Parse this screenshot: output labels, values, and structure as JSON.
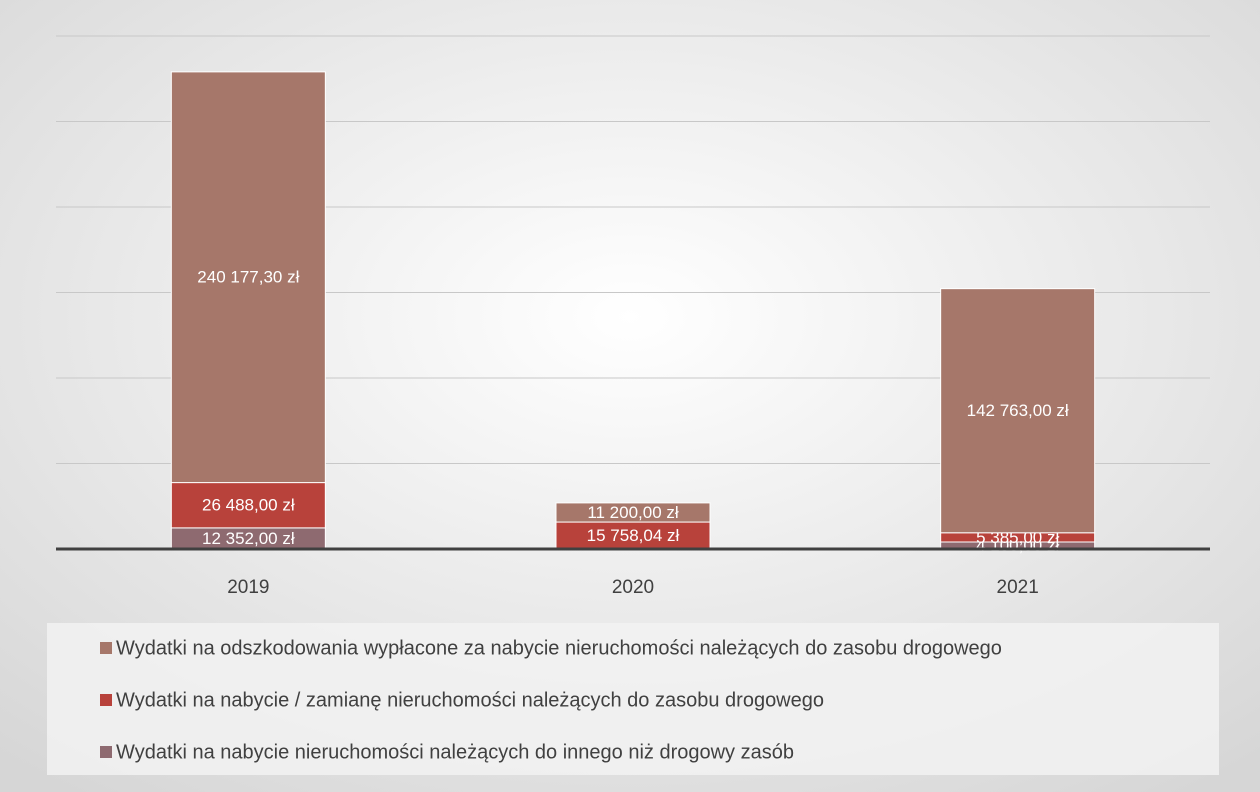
{
  "chart_data": {
    "type": "stacked_bar",
    "categories": [
      "2019",
      "2020",
      "2021"
    ],
    "series": [
      {
        "name": "Wydatki na odszkodowania wypłacone za nabycie nieruchomości należących do zasobu drogowego",
        "color": "#a6776a",
        "values": [
          240177.3,
          11200,
          142763
        ],
        "value_labels": [
          "240 177,30 zł",
          "11 200,00 zł",
          "142 763,00 zł"
        ]
      },
      {
        "name": "Wydatki na nabycie / zamianę nieruchomości należących do zasobu drogowego",
        "color": "#b8423b",
        "values": [
          26488,
          15758.04,
          5385
        ],
        "value_labels": [
          "26 488,00 zł",
          "15 758,04 zł",
          "5 385,00 zł"
        ]
      },
      {
        "name": "Wydatki na nabycie nieruchomości należących do innego niż drogowy zasób",
        "color": "#8e6a70",
        "values": [
          12352,
          null,
          4100
        ],
        "value_labels": [
          "12 352,00 zł",
          null,
          "4 100,00 zł"
        ]
      }
    ],
    "ylim": [
      0,
      300000
    ],
    "yticks": [
      0,
      50000,
      100000,
      150000,
      200000,
      250000,
      300000
    ],
    "grid": true
  }
}
